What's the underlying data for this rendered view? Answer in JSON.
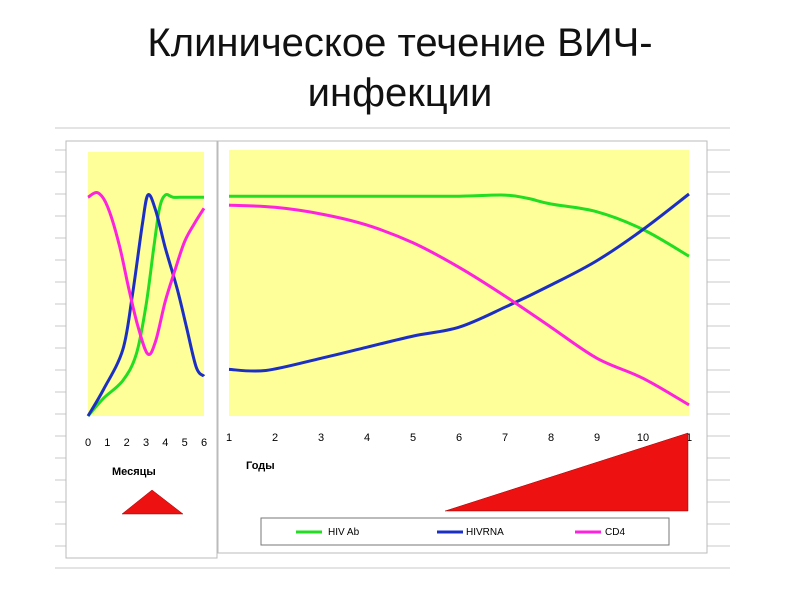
{
  "title_line1": "Клиническое течение ВИЧ-",
  "title_line2": "инфекции",
  "colors": {
    "plot_bg": "#ffff99",
    "hiv_ab": "#22dd22",
    "hivrna": "#1c2fc4",
    "cd4": "#ff22dd",
    "triangle": "#ee1111"
  },
  "chart_data": [
    {
      "type": "line",
      "xlabel": "Месяцы",
      "x_ticks": [
        "0",
        "1",
        "2",
        "3",
        "4",
        "5",
        "6"
      ],
      "xlim": [
        0,
        6
      ],
      "ylim": [
        0,
        1
      ],
      "grid": false,
      "series": [
        {
          "name": "HIV Ab",
          "points": [
            [
              0,
              0.0
            ],
            [
              0.8,
              0.08
            ],
            [
              1.8,
              0.16
            ],
            [
              2.5,
              0.28
            ],
            [
              3.0,
              0.5
            ],
            [
              3.4,
              0.76
            ],
            [
              3.7,
              0.94
            ],
            [
              4.0,
              1.0
            ],
            [
              4.4,
              0.99
            ],
            [
              5.0,
              0.99
            ],
            [
              6.0,
              0.99
            ]
          ]
        },
        {
          "name": "HIVRNA",
          "points": [
            [
              0,
              0.0
            ],
            [
              0.8,
              0.12
            ],
            [
              1.8,
              0.3
            ],
            [
              2.3,
              0.55
            ],
            [
              2.8,
              0.86
            ],
            [
              3.1,
              1.0
            ],
            [
              3.5,
              0.93
            ],
            [
              4.0,
              0.76
            ],
            [
              4.6,
              0.58
            ],
            [
              5.1,
              0.4
            ],
            [
              5.6,
              0.22
            ],
            [
              6.0,
              0.18
            ]
          ]
        },
        {
          "name": "CD4",
          "points": [
            [
              0,
              0.99
            ],
            [
              0.5,
              1.01
            ],
            [
              1.0,
              0.95
            ],
            [
              1.6,
              0.78
            ],
            [
              2.1,
              0.58
            ],
            [
              2.6,
              0.4
            ],
            [
              3.1,
              0.28
            ],
            [
              3.5,
              0.34
            ],
            [
              4.0,
              0.52
            ],
            [
              4.5,
              0.66
            ],
            [
              5.0,
              0.79
            ],
            [
              5.5,
              0.87
            ],
            [
              6.0,
              0.94
            ]
          ]
        }
      ]
    },
    {
      "type": "line",
      "xlabel": "Годы",
      "x_ticks": [
        "1",
        "2",
        "3",
        "4",
        "5",
        "6",
        "7",
        "8",
        "9",
        "10",
        "1"
      ],
      "xlim": [
        1,
        11
      ],
      "ylim": [
        0,
        1
      ],
      "grid": false,
      "legend_position": "bottom",
      "series": [
        {
          "name": "HIV Ab",
          "points": [
            [
              1,
              0.99
            ],
            [
              2,
              0.99
            ],
            [
              3,
              0.99
            ],
            [
              4,
              0.99
            ],
            [
              5,
              0.99
            ],
            [
              6,
              0.99
            ],
            [
              7,
              0.995
            ],
            [
              7.5,
              0.98
            ],
            [
              8,
              0.955
            ],
            [
              9,
              0.92
            ],
            [
              10,
              0.84
            ],
            [
              11,
              0.72
            ]
          ]
        },
        {
          "name": "HIVRNA",
          "points": [
            [
              1,
              0.21
            ],
            [
              1.8,
              0.205
            ],
            [
              3,
              0.26
            ],
            [
              4,
              0.31
            ],
            [
              5,
              0.36
            ],
            [
              6,
              0.4
            ],
            [
              7,
              0.49
            ],
            [
              8,
              0.59
            ],
            [
              9,
              0.7
            ],
            [
              10,
              0.84
            ],
            [
              11,
              1.0
            ]
          ]
        },
        {
          "name": "CD4",
          "points": [
            [
              1,
              0.95
            ],
            [
              2,
              0.94
            ],
            [
              3,
              0.91
            ],
            [
              4,
              0.86
            ],
            [
              5,
              0.78
            ],
            [
              6,
              0.67
            ],
            [
              7,
              0.54
            ],
            [
              8,
              0.4
            ],
            [
              9,
              0.26
            ],
            [
              10,
              0.17
            ],
            [
              11,
              0.05
            ]
          ]
        }
      ]
    }
  ],
  "legend": [
    "HIV Ab",
    "HIVRNA",
    "CD4"
  ]
}
